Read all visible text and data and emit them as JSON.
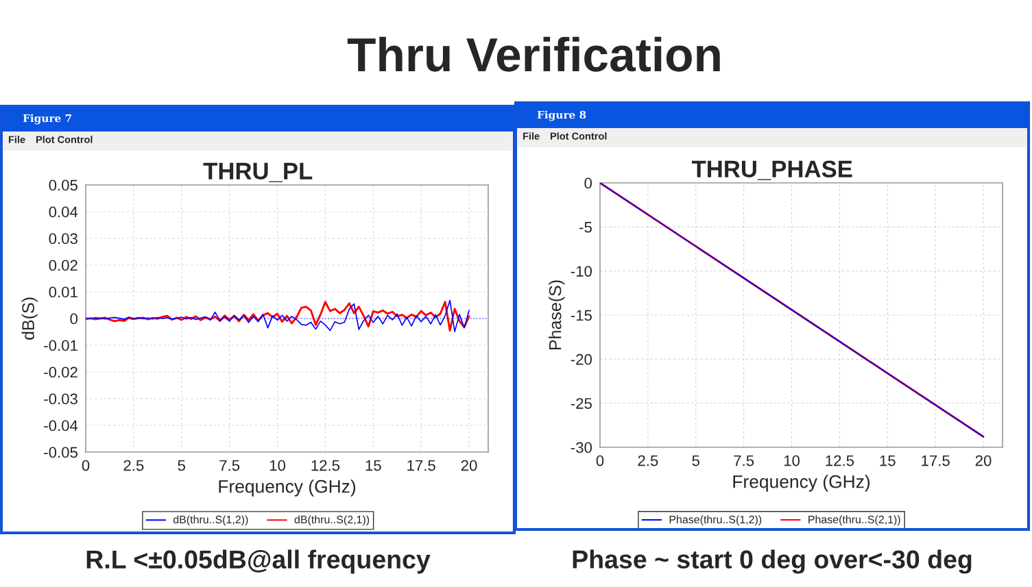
{
  "chart_data": [
    {
      "type": "line",
      "title": "THRU_PL",
      "xlabel": "Frequency (GHz)",
      "ylabel": "dB(S)",
      "x": [
        0,
        0.25,
        0.5,
        0.75,
        1,
        1.25,
        1.5,
        1.75,
        2,
        2.25,
        2.5,
        2.75,
        3,
        3.25,
        3.5,
        3.75,
        4,
        4.25,
        4.5,
        4.75,
        5,
        5.25,
        5.5,
        5.75,
        6,
        6.25,
        6.5,
        6.75,
        7,
        7.25,
        7.5,
        7.75,
        8,
        8.25,
        8.5,
        8.75,
        9,
        9.25,
        9.5,
        9.75,
        10,
        10.25,
        10.5,
        10.75,
        11,
        11.25,
        11.5,
        11.75,
        12,
        12.25,
        12.5,
        12.75,
        13,
        13.25,
        13.5,
        13.75,
        14,
        14.25,
        14.5,
        14.75,
        15,
        15.25,
        15.5,
        15.75,
        16,
        16.25,
        16.5,
        16.75,
        17,
        17.25,
        17.5,
        17.75,
        18,
        18.25,
        18.5,
        18.75,
        19,
        19.25,
        19.5,
        19.75,
        20
      ],
      "series": [
        {
          "name": "dB(thru..S(1,2))",
          "color": "#0000ff",
          "values": [
            0.0002,
            -0.0001,
            0.0003,
            0.0001,
            -0.0002,
            0.0002,
            0.0004,
            0.0001,
            -0.0003,
            0.0005,
            0.0,
            0.0003,
            -0.0001,
            0.0002,
            -0.0002,
            0.0004,
            0.0,
            0.0003,
            -0.0003,
            0.0002,
            0.0005,
            -0.0002,
            0.0004,
            -0.0004,
            0.0002,
            0.0006,
            -0.0006,
            0.0024,
            -0.0008,
            0.0005,
            -0.001,
            0.0012,
            -0.0005,
            0.001,
            -0.0015,
            0.0008,
            -0.0012,
            0.0016,
            -0.0035,
            0.001,
            -0.0006,
            0.0012,
            -0.001,
            0.0008,
            -0.0004,
            -0.0022,
            -0.0025,
            -0.0014,
            -0.004,
            -0.001,
            -0.0024,
            -0.0045,
            -0.0012,
            -0.002,
            -0.0014,
            0.0035,
            0.0055,
            -0.0041,
            -0.0008,
            0.0012,
            -0.0015,
            0.0008,
            -0.002,
            0.0012,
            -0.0005,
            0.0017,
            -0.0025,
            0.0004,
            -0.0028,
            0.001,
            -0.0012,
            0.0008,
            -0.002,
            0.0014,
            -0.0024,
            0.001,
            0.0068,
            -0.0049,
            0.0015,
            -0.0035,
            0.003
          ]
        },
        {
          "name": "dB(thru..S(2,1))",
          "color": "#ff0000",
          "values": [
            -0.0002,
            0.0001,
            -0.0003,
            0.0,
            0.0003,
            -0.0004,
            -0.001,
            -0.0006,
            -0.0009,
            0.0002,
            -0.0002,
            0.0001,
            0.0003,
            -0.0003,
            0.0002,
            -0.0001,
            0.0006,
            0.001,
            -0.0004,
            0.0002,
            -0.0005,
            0.0006,
            -0.0002,
            0.0008,
            -0.0006,
            0.0004,
            -0.0003,
            0.0007,
            -0.0009,
            0.0011,
            -0.0004,
            0.0009,
            -0.001,
            0.0014,
            -0.0006,
            0.0016,
            -0.0008,
            0.0012,
            0.002,
            0.0005,
            0.0018,
            -0.0012,
            0.001,
            -0.0018,
            0.0005,
            0.004,
            0.0044,
            0.003,
            -0.0024,
            0.0015,
            0.0062,
            0.0028,
            0.0036,
            0.002,
            0.0032,
            0.0057,
            0.002,
            0.0044,
            0.001,
            -0.003,
            0.0027,
            0.0022,
            0.003,
            0.0018,
            0.0025,
            0.0008,
            0.0014,
            0.0002,
            0.0015,
            0.0006,
            0.0028,
            0.0012,
            0.0022,
            0.0005,
            0.0018,
            0.0062,
            -0.0045,
            0.0036,
            -0.001,
            -0.0032,
            0.0008
          ]
        }
      ],
      "xlim": [
        0,
        21
      ],
      "ylim": [
        -0.05,
        0.05
      ],
      "xticks": [
        0,
        2.5,
        5,
        7.5,
        10,
        12.5,
        15,
        17.5,
        20
      ],
      "yticks": [
        -0.05,
        -0.04,
        -0.03,
        -0.02,
        -0.01,
        0,
        0.01,
        0.02,
        0.03,
        0.04,
        0.05
      ],
      "grid": true,
      "legend": "bottom",
      "ref_lines": [
        {
          "axis": "y",
          "value": 0,
          "color": "#6666ff",
          "line_style": "dotted"
        }
      ],
      "annotations": [
        "Thru Verification",
        "Figure 7",
        "File",
        "Plot Control",
        "R.L <±0.05dB@all frequency"
      ]
    },
    {
      "type": "line",
      "title": "THRU_PHASE",
      "xlabel": "Frequency (GHz)",
      "ylabel": "Phase(S)",
      "x": [
        0,
        5,
        10,
        15,
        20
      ],
      "series": [
        {
          "name": "Phase(thru..S(1,2))",
          "color": "#0000ff",
          "values": [
            0,
            -7.2,
            -14.4,
            -21.6,
            -28.8
          ]
        },
        {
          "name": "Phase(thru..S(2,1))",
          "color": "#ff0000",
          "values": [
            0,
            -7.2,
            -14.4,
            -21.6,
            -28.8
          ]
        }
      ],
      "xlim": [
        0,
        21
      ],
      "ylim": [
        -30,
        0
      ],
      "xticks": [
        0,
        2.5,
        5,
        7.5,
        10,
        12.5,
        15,
        17.5,
        20
      ],
      "yticks": [
        -30,
        -25,
        -20,
        -15,
        -10,
        -5,
        0
      ],
      "grid": true,
      "legend": "bottom",
      "annotations": [
        "Figure 8",
        "File",
        "Plot Control",
        "Phase ~ start 0 deg over<-30 deg"
      ]
    }
  ]
}
